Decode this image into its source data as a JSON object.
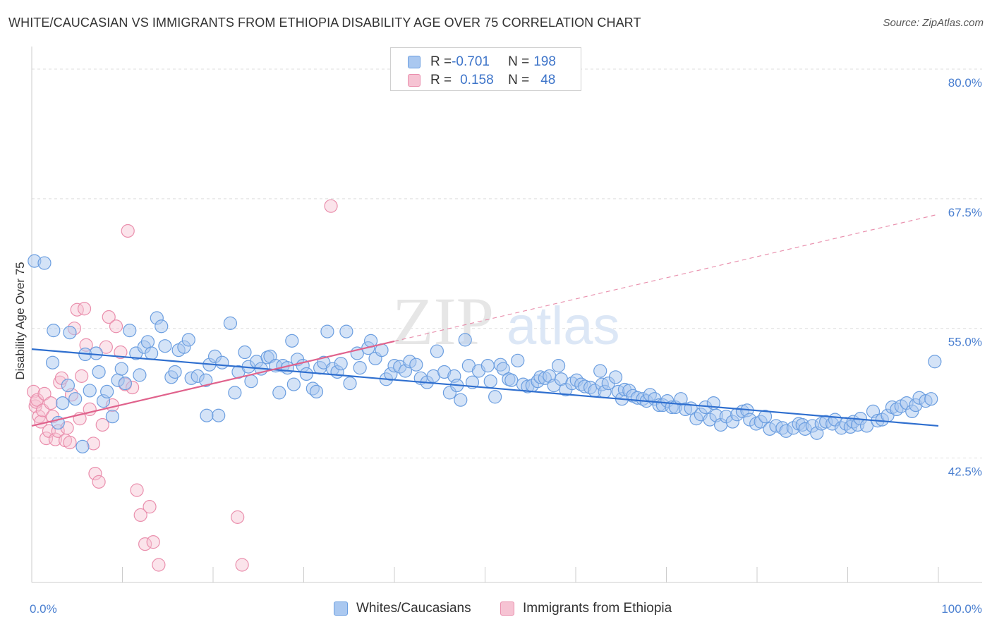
{
  "header": {
    "title": "WHITE/CAUCASIAN VS IMMIGRANTS FROM ETHIOPIA DISABILITY AGE OVER 75 CORRELATION CHART",
    "source": "Source: ZipAtlas.com"
  },
  "watermark": {
    "zip": "ZIP",
    "atlas": "atlas"
  },
  "legend": {
    "rows": [
      {
        "r_label": "R = ",
        "r_value": "-0.701",
        "n_label": "N = ",
        "n_value": "198"
      },
      {
        "r_label": "R = ",
        "r_value": "0.158",
        "n_label": "N = ",
        "n_value": "48"
      }
    ]
  },
  "bottom_legend": {
    "items": [
      {
        "label": "Whites/Caucasians"
      },
      {
        "label": "Immigrants from Ethiopia"
      }
    ]
  },
  "colors": {
    "blue_fill": "#aac8f0",
    "blue_stroke": "#6b9ee0",
    "blue_line": "#2f6fcf",
    "pink_fill": "#f6c3d3",
    "pink_stroke": "#ea8fad",
    "pink_line": "#e0628c",
    "tick_text": "#4a7fd0",
    "grid": "#dddddd"
  },
  "chart_data": {
    "type": "scatter",
    "title": "WHITE/CAUCASIAN VS IMMIGRANTS FROM ETHIOPIA DISABILITY AGE OVER 75 CORRELATION CHART",
    "xlabel": "",
    "ylabel": "Disability Age Over 75",
    "xlim": [
      0,
      100
    ],
    "ylim": [
      30.5,
      81.5
    ],
    "x_tick_labels": [
      "0.0%",
      "100.0%"
    ],
    "y_ticks": [
      42.5,
      55.0,
      67.5,
      80.0
    ],
    "y_tick_labels": [
      "42.5%",
      "55.0%",
      "67.5%",
      "80.0%"
    ],
    "grid": true,
    "legend_position": "top-center",
    "series": [
      {
        "name": "Whites/Caucasians",
        "R": -0.701,
        "N": 198,
        "trend": {
          "x": [
            0,
            100
          ],
          "y": [
            53.0,
            45.6
          ]
        },
        "points": [
          [
            0.3,
            61.5
          ],
          [
            1.4,
            61.3
          ],
          [
            2.3,
            51.7
          ],
          [
            2.4,
            54.8
          ],
          [
            2.9,
            45.9
          ],
          [
            3.4,
            47.8
          ],
          [
            4.0,
            49.5
          ],
          [
            4.2,
            54.6
          ],
          [
            4.8,
            48.2
          ],
          [
            5.6,
            43.6
          ],
          [
            5.9,
            52.5
          ],
          [
            6.4,
            49.0
          ],
          [
            7.1,
            52.6
          ],
          [
            7.4,
            50.8
          ],
          [
            7.9,
            48.0
          ],
          [
            8.3,
            48.9
          ],
          [
            8.9,
            46.5
          ],
          [
            9.5,
            50.0
          ],
          [
            9.9,
            51.1
          ],
          [
            10.3,
            49.7
          ],
          [
            10.8,
            54.8
          ],
          [
            11.5,
            52.6
          ],
          [
            11.9,
            50.5
          ],
          [
            12.4,
            53.2
          ],
          [
            12.8,
            53.7
          ],
          [
            13.2,
            52.6
          ],
          [
            13.8,
            56.0
          ],
          [
            14.3,
            55.2
          ],
          [
            14.7,
            53.3
          ],
          [
            15.4,
            50.3
          ],
          [
            15.8,
            50.8
          ],
          [
            16.2,
            52.9
          ],
          [
            16.8,
            53.2
          ],
          [
            17.3,
            53.9
          ],
          [
            17.6,
            50.2
          ],
          [
            18.3,
            50.4
          ],
          [
            19.2,
            50.0
          ],
          [
            19.3,
            46.6
          ],
          [
            19.6,
            51.5
          ],
          [
            20.2,
            52.3
          ],
          [
            20.6,
            46.6
          ],
          [
            21.0,
            51.7
          ],
          [
            21.9,
            55.5
          ],
          [
            22.4,
            48.8
          ],
          [
            22.8,
            50.8
          ],
          [
            23.5,
            52.7
          ],
          [
            23.9,
            51.3
          ],
          [
            24.2,
            49.9
          ],
          [
            24.8,
            51.8
          ],
          [
            25.3,
            51.1
          ],
          [
            26.0,
            52.2
          ],
          [
            26.3,
            52.3
          ],
          [
            26.9,
            51.4
          ],
          [
            27.3,
            48.8
          ],
          [
            27.7,
            51.4
          ],
          [
            28.2,
            51.2
          ],
          [
            28.7,
            53.8
          ],
          [
            28.9,
            49.6
          ],
          [
            29.3,
            52.0
          ],
          [
            29.9,
            51.4
          ],
          [
            30.3,
            50.6
          ],
          [
            31.0,
            49.2
          ],
          [
            31.4,
            48.9
          ],
          [
            31.8,
            51.2
          ],
          [
            32.2,
            51.7
          ],
          [
            32.6,
            54.7
          ],
          [
            33.2,
            51.1
          ],
          [
            33.7,
            50.8
          ],
          [
            34.1,
            51.6
          ],
          [
            34.7,
            54.7
          ],
          [
            35.1,
            49.7
          ],
          [
            35.9,
            52.6
          ],
          [
            36.2,
            51.2
          ],
          [
            37.1,
            53.1
          ],
          [
            37.4,
            53.8
          ],
          [
            37.9,
            52.1
          ],
          [
            38.6,
            52.9
          ],
          [
            39.1,
            50.1
          ],
          [
            39.6,
            50.6
          ],
          [
            40.0,
            51.4
          ],
          [
            40.6,
            51.3
          ],
          [
            41.2,
            50.9
          ],
          [
            41.7,
            51.8
          ],
          [
            42.4,
            51.5
          ],
          [
            42.9,
            50.2
          ],
          [
            43.6,
            49.8
          ],
          [
            44.3,
            50.4
          ],
          [
            44.7,
            52.8
          ],
          [
            45.5,
            50.8
          ],
          [
            46.1,
            48.8
          ],
          [
            46.6,
            50.4
          ],
          [
            46.9,
            49.5
          ],
          [
            47.3,
            48.1
          ],
          [
            47.8,
            53.9
          ],
          [
            48.2,
            51.4
          ],
          [
            48.6,
            49.8
          ],
          [
            49.3,
            50.9
          ],
          [
            50.3,
            51.4
          ],
          [
            50.6,
            49.9
          ],
          [
            51.1,
            48.4
          ],
          [
            51.7,
            51.5
          ],
          [
            52.0,
            51.1
          ],
          [
            52.6,
            50.1
          ],
          [
            52.9,
            50.0
          ],
          [
            53.6,
            51.9
          ],
          [
            54.2,
            49.6
          ],
          [
            54.7,
            49.4
          ],
          [
            55.2,
            49.5
          ],
          [
            55.8,
            49.9
          ],
          [
            56.1,
            50.3
          ],
          [
            56.6,
            50.2
          ],
          [
            57.1,
            50.4
          ],
          [
            57.6,
            49.5
          ],
          [
            58.1,
            51.4
          ],
          [
            58.4,
            50.1
          ],
          [
            58.9,
            49.1
          ],
          [
            59.6,
            49.7
          ],
          [
            60.1,
            50.0
          ],
          [
            60.6,
            49.6
          ],
          [
            61.0,
            49.4
          ],
          [
            61.6,
            49.3
          ],
          [
            62.1,
            49.0
          ],
          [
            62.7,
            50.9
          ],
          [
            62.9,
            49.6
          ],
          [
            63.2,
            48.9
          ],
          [
            63.6,
            49.7
          ],
          [
            64.4,
            50.3
          ],
          [
            64.7,
            48.9
          ],
          [
            65.1,
            48.2
          ],
          [
            65.4,
            49.1
          ],
          [
            65.9,
            49.0
          ],
          [
            66.3,
            48.5
          ],
          [
            66.8,
            48.3
          ],
          [
            67.4,
            48.2
          ],
          [
            67.8,
            48.0
          ],
          [
            68.2,
            48.6
          ],
          [
            68.7,
            48.2
          ],
          [
            69.2,
            47.6
          ],
          [
            69.6,
            47.6
          ],
          [
            70.1,
            48.0
          ],
          [
            70.6,
            47.4
          ],
          [
            71.0,
            47.4
          ],
          [
            71.6,
            48.2
          ],
          [
            72.1,
            47.2
          ],
          [
            72.7,
            47.3
          ],
          [
            73.3,
            46.3
          ],
          [
            73.8,
            46.7
          ],
          [
            74.3,
            47.4
          ],
          [
            74.8,
            46.2
          ],
          [
            75.2,
            47.8
          ],
          [
            75.5,
            46.6
          ],
          [
            76.0,
            45.7
          ],
          [
            76.6,
            46.5
          ],
          [
            77.3,
            46.0
          ],
          [
            77.8,
            46.7
          ],
          [
            78.4,
            47.0
          ],
          [
            78.9,
            47.1
          ],
          [
            79.2,
            46.2
          ],
          [
            79.9,
            45.8
          ],
          [
            80.4,
            46.0
          ],
          [
            80.9,
            46.5
          ],
          [
            81.4,
            45.3
          ],
          [
            82.1,
            45.6
          ],
          [
            82.8,
            45.4
          ],
          [
            83.2,
            45.1
          ],
          [
            84.0,
            45.4
          ],
          [
            84.6,
            45.8
          ],
          [
            85.0,
            45.7
          ],
          [
            85.3,
            45.3
          ],
          [
            86.1,
            45.6
          ],
          [
            86.6,
            44.9
          ],
          [
            87.1,
            45.8
          ],
          [
            87.6,
            46.0
          ],
          [
            88.3,
            45.8
          ],
          [
            88.6,
            46.2
          ],
          [
            89.3,
            45.4
          ],
          [
            89.8,
            45.8
          ],
          [
            90.3,
            45.5
          ],
          [
            90.6,
            46.0
          ],
          [
            91.1,
            45.7
          ],
          [
            91.4,
            46.3
          ],
          [
            92.1,
            45.6
          ],
          [
            92.8,
            47.0
          ],
          [
            93.3,
            46.1
          ],
          [
            93.8,
            46.2
          ],
          [
            94.4,
            46.6
          ],
          [
            94.9,
            47.4
          ],
          [
            95.4,
            47.2
          ],
          [
            95.9,
            47.5
          ],
          [
            96.5,
            47.8
          ],
          [
            97.1,
            47.0
          ],
          [
            97.5,
            47.6
          ],
          [
            97.9,
            48.3
          ],
          [
            98.6,
            48.0
          ],
          [
            99.2,
            48.2
          ],
          [
            99.6,
            51.8
          ]
        ]
      },
      {
        "name": "Immigrants from Ethiopia",
        "R": 0.158,
        "N": 48,
        "trend": {
          "x": [
            0,
            100
          ],
          "y": [
            45.6,
            66.0
          ]
        },
        "points": [
          [
            0.2,
            48.9
          ],
          [
            0.4,
            47.5
          ],
          [
            0.5,
            47.9
          ],
          [
            0.6,
            48.1
          ],
          [
            0.8,
            46.5
          ],
          [
            1.0,
            46.0
          ],
          [
            1.2,
            47.1
          ],
          [
            1.4,
            48.7
          ],
          [
            1.6,
            44.4
          ],
          [
            1.9,
            45.1
          ],
          [
            2.1,
            47.8
          ],
          [
            2.3,
            46.5
          ],
          [
            2.6,
            44.3
          ],
          [
            2.9,
            45.1
          ],
          [
            3.1,
            49.8
          ],
          [
            3.3,
            50.2
          ],
          [
            3.7,
            44.2
          ],
          [
            3.9,
            45.4
          ],
          [
            4.2,
            44.0
          ],
          [
            4.4,
            48.6
          ],
          [
            4.7,
            55.0
          ],
          [
            5.0,
            56.8
          ],
          [
            5.3,
            46.3
          ],
          [
            5.5,
            50.4
          ],
          [
            5.8,
            56.9
          ],
          [
            6.0,
            53.4
          ],
          [
            6.4,
            47.2
          ],
          [
            6.8,
            43.9
          ],
          [
            7.0,
            41.0
          ],
          [
            7.4,
            40.2
          ],
          [
            7.8,
            45.7
          ],
          [
            8.2,
            53.2
          ],
          [
            8.5,
            56.1
          ],
          [
            8.9,
            47.6
          ],
          [
            9.3,
            55.2
          ],
          [
            9.8,
            52.7
          ],
          [
            10.3,
            49.6
          ],
          [
            10.6,
            64.4
          ],
          [
            11.1,
            49.3
          ],
          [
            11.6,
            39.4
          ],
          [
            12.0,
            37.0
          ],
          [
            12.5,
            34.2
          ],
          [
            13.0,
            37.8
          ],
          [
            13.4,
            34.4
          ],
          [
            14.0,
            32.2
          ],
          [
            22.7,
            36.8
          ],
          [
            23.2,
            32.2
          ],
          [
            33.0,
            66.8
          ]
        ]
      }
    ]
  }
}
